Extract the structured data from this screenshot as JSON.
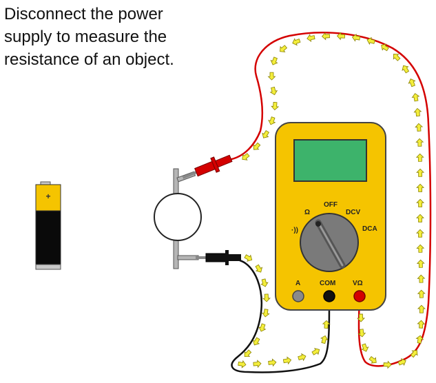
{
  "caption": {
    "lines": [
      "Disconnect the power",
      "supply to measure the",
      "resistance of an object."
    ]
  },
  "battery": {
    "polarity_label": "+"
  },
  "multimeter": {
    "dial_labels": {
      "off": "OFF",
      "ohm": "Ω",
      "dcv": "DCV",
      "dca": "DCA",
      "continuity": "·))"
    },
    "ports": {
      "a": "A",
      "com": "COM",
      "vohm": "VΩ"
    }
  },
  "colors": {
    "meter_body": "#f5c400",
    "display": "#3db36b",
    "dial": "#7a7a7a",
    "red_lead": "#d40000",
    "black_lead": "#111111",
    "current_arrow": "#f4ee3c"
  }
}
